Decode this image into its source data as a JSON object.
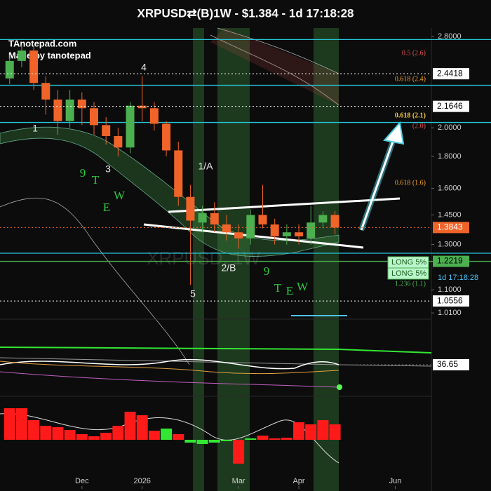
{
  "chart_data": [
    {
      "type": "candlestick",
      "title": "XRPUSD⇄(B)1W - $1.384 - 1d 17:18:28",
      "watermark": "XRPUSD, 1W",
      "credits": [
        "TAnotepad.com",
        "Made by tanotepad"
      ],
      "x": [
        0,
        1,
        2,
        3,
        4,
        5,
        6,
        7,
        8,
        9,
        10,
        11,
        12,
        13,
        14,
        15,
        16,
        17,
        18,
        19,
        20,
        21,
        22,
        23,
        24,
        25,
        26,
        27
      ],
      "open": [
        2.4,
        2.56,
        2.66,
        2.36,
        2.22,
        2.05,
        2.22,
        2.15,
        2.02,
        1.94,
        1.86,
        2.17,
        2.15,
        2.03,
        1.84,
        1.55,
        1.41,
        1.46,
        1.4,
        1.36,
        1.33,
        1.45,
        1.4,
        1.34,
        1.36,
        1.33,
        1.41,
        1.45
      ],
      "high": [
        2.62,
        2.72,
        2.7,
        2.42,
        2.3,
        2.3,
        2.28,
        2.2,
        2.08,
        2.0,
        2.2,
        2.42,
        2.2,
        2.05,
        1.9,
        1.62,
        1.5,
        1.52,
        1.45,
        1.4,
        1.48,
        1.62,
        1.43,
        1.4,
        1.4,
        1.5,
        1.47,
        1.47
      ],
      "low": [
        2.35,
        2.5,
        2.3,
        2.1,
        1.95,
        2.0,
        2.02,
        1.95,
        1.88,
        1.8,
        1.82,
        2.05,
        1.98,
        1.8,
        1.5,
        1.12,
        1.36,
        1.36,
        1.32,
        1.28,
        1.3,
        1.38,
        1.3,
        1.3,
        1.3,
        1.3,
        1.38,
        1.35
      ],
      "close": [
        2.56,
        2.66,
        2.36,
        2.22,
        2.05,
        2.22,
        2.15,
        2.02,
        1.94,
        1.86,
        2.17,
        2.15,
        2.03,
        1.84,
        1.55,
        1.42,
        1.46,
        1.4,
        1.36,
        1.33,
        1.45,
        1.4,
        1.34,
        1.36,
        1.34,
        1.41,
        1.45,
        1.384
      ],
      "up_color": "#4caf50",
      "down_color": "#f0642a",
      "log_scale": true,
      "ylim": [
        1.0,
        2.89
      ],
      "yticks": [
        {
          "value": 2.8,
          "label": "2.8000"
        },
        {
          "value": 2.0,
          "label": "2.0000"
        },
        {
          "value": 1.8,
          "label": "1.8000"
        },
        {
          "value": 1.6,
          "label": "1.6000"
        },
        {
          "value": 1.45,
          "label": "1.4500"
        },
        {
          "value": 1.3,
          "label": "1.3000"
        },
        {
          "value": 1.1,
          "label": "1.1000"
        },
        {
          "value": 1.01,
          "label": "1.0100"
        }
      ],
      "xlim": [
        -0.8,
        35
      ],
      "xticks": [
        {
          "value": 6,
          "label": "Dec"
        },
        {
          "value": 11,
          "label": "2026"
        },
        {
          "value": 19,
          "label": "Mar"
        },
        {
          "value": 24,
          "label": "Apr"
        },
        {
          "value": 32,
          "label": "Jun"
        }
      ],
      "hlines": [
        {
          "value": 2.77,
          "color": "#26c6da"
        },
        {
          "value": 2.34,
          "color": "#26c6da"
        },
        {
          "value": 2.04,
          "color": "#26c6da"
        },
        {
          "value": 1.259,
          "color": "#26c6da"
        },
        {
          "value": 1.2219,
          "color": "#4caf50"
        }
      ],
      "price_lines": [
        {
          "value": 2.4418,
          "color": "#ffffff",
          "text_color": "#000000"
        },
        {
          "value": 2.1646,
          "color": "#ffffff",
          "text_color": "#000000"
        },
        {
          "value": 1.3843,
          "color": "#f0642a",
          "text_color": "#ffffff"
        },
        {
          "value": 1.2219,
          "color": "#4caf50",
          "text_color": "#000000"
        },
        {
          "value": 1.0556,
          "color": "#ffffff",
          "text_color": "#000000"
        }
      ],
      "wave_labels": [
        "1",
        "4",
        "3",
        "1/A",
        "2/B",
        "5"
      ],
      "green_labels": [
        "9",
        "T",
        "E",
        "W",
        "9",
        "T",
        "E",
        "W"
      ],
      "fib_labels": [
        {
          "text": "0.5 (2.6)",
          "color": "#e05050"
        },
        {
          "text": "0.618 (2.4)",
          "color": "#f0a030"
        },
        {
          "text": "0.618 (2.1)",
          "color": "#f5c842"
        },
        {
          "text": "(2.0)",
          "color": "#e05050"
        },
        {
          "text": "0.618 (1.6)",
          "color": "#f0a030"
        },
        {
          "text": "1.236 (1.1)",
          "color": "#4caf50"
        }
      ],
      "orders": [
        "LONG 5%",
        "LONG 5%"
      ],
      "countdown": "1d 17:18:28"
    },
    {
      "type": "indicator",
      "value": 36.65
    },
    {
      "type": "bar",
      "values": [
        4.5,
        4.5,
        2.8,
        2.0,
        1.8,
        1.4,
        0.8,
        0.5,
        1.0,
        2.0,
        4.0,
        3.5,
        1.3,
        1.6,
        0.8,
        -0.4,
        -0.6,
        -0.4,
        -0.2,
        -3.4,
        0.2,
        0.6,
        0.2,
        0.3,
        2.5,
        2.2,
        2.8,
        2.2
      ],
      "colors": [
        "#ff1a1a",
        "#ff1a1a",
        "#ff1a1a",
        "#ff1a1a",
        "#ff1a1a",
        "#ff1a1a",
        "#ff1a1a",
        "#ff1a1a",
        "#ff1a1a",
        "#ff1a1a",
        "#ff1a1a",
        "#ff1a1a",
        "#ff1a1a",
        "#33e633",
        "#ff1a1a",
        "#33e633",
        "#33e633",
        "#33e633",
        "#33e633",
        "#ff1a1a",
        "#33e633",
        "#ff1a1a",
        "#ff1a1a",
        "#ff1a1a",
        "#ff1a1a",
        "#ff1a1a",
        "#ff1a1a",
        "#ff1a1a"
      ]
    }
  ]
}
